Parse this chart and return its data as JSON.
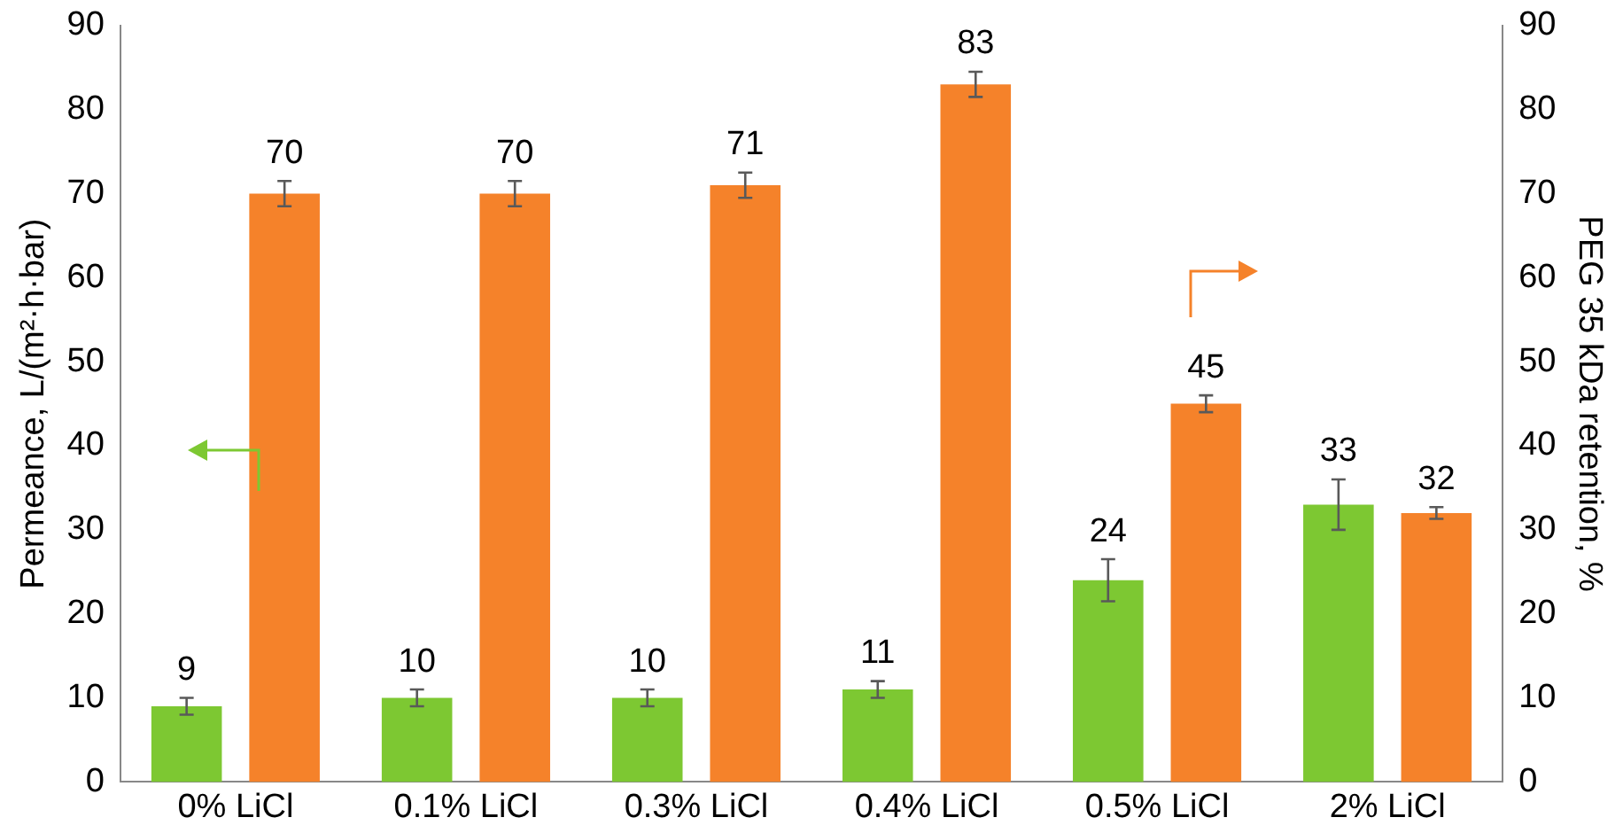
{
  "chart_data": {
    "type": "bar",
    "ylabel": "Permeance, L/(m²·h·bar)",
    "y2label": "PEG 35 kDa retention, %",
    "categories": [
      "0% LiCl",
      "0.1% LiCl",
      "0.3% LiCl",
      "0.4% LiCl",
      "0.5% LiCl",
      "2% LiCl"
    ],
    "series": [
      {
        "color": "#7dc832",
        "values": [
          9,
          10,
          10,
          11,
          24,
          33
        ],
        "errors": [
          1,
          1,
          1,
          1,
          2.5,
          3
        ]
      },
      {
        "color": "#f5822a",
        "axis": "y2",
        "values": [
          70,
          70,
          71,
          83,
          45,
          32
        ],
        "errors": [
          1.5,
          1.5,
          1.5,
          1.5,
          1,
          0.7
        ]
      }
    ],
    "ylim": [
      0,
      90
    ],
    "yticks": [
      0,
      10,
      20,
      30,
      40,
      50,
      60,
      70,
      80,
      90
    ],
    "y2lim": [
      0,
      90
    ],
    "y2ticks": [
      0,
      10,
      20,
      30,
      40,
      50,
      60,
      70,
      80,
      90
    ],
    "data_labels": true,
    "grid": false,
    "legend": false
  }
}
